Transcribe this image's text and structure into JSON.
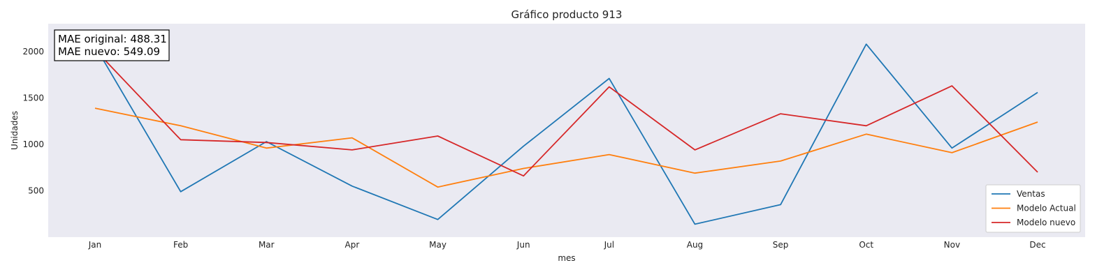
{
  "chart_data": {
    "type": "line",
    "title": "Gráfico producto 913",
    "xlabel": "mes",
    "ylabel": "Unidades",
    "categories": [
      "Jan",
      "Feb",
      "Mar",
      "Apr",
      "May",
      "Jun",
      "Jul",
      "Aug",
      "Sep",
      "Oct",
      "Nov",
      "Dec"
    ],
    "ylim": [
      0,
      2300
    ],
    "yticks": [
      500,
      1000,
      1500,
      2000
    ],
    "grid": false,
    "legend_position": "bottom-right",
    "annotations": [
      "MAE original: 488.31",
      "MAE nuevo: 549.09"
    ],
    "series": [
      {
        "name": "Ventas",
        "color": "#1f77b4",
        "values": [
          2060,
          490,
          1030,
          550,
          190,
          980,
          1710,
          140,
          350,
          2080,
          960,
          1560
        ]
      },
      {
        "name": "Modelo Actual",
        "color": "#ff7f0e",
        "values": [
          1390,
          1200,
          960,
          1070,
          540,
          740,
          890,
          690,
          820,
          1110,
          910,
          1240
        ]
      },
      {
        "name": "Modelo nuevo",
        "color": "#d62728",
        "values": [
          2020,
          1050,
          1020,
          940,
          1090,
          660,
          1620,
          940,
          1330,
          1200,
          1630,
          700
        ]
      }
    ]
  }
}
